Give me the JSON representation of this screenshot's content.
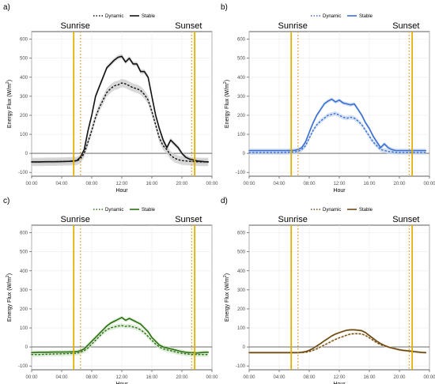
{
  "chart_data": [
    {
      "panel_label": "a)",
      "type": "line",
      "line_color": "#111111",
      "band_color": "#c8c8c8",
      "xlabel": "Hour",
      "ylabel": "Energy Flux (W/m²)",
      "ylabel_main": "Energy Flux (W/m",
      "ylabel_sup": "2",
      "ylabel_end": ")",
      "xlim": [
        0,
        24
      ],
      "ylim": [
        -120,
        640
      ],
      "xticks": [
        "00:00",
        "04:00",
        "08:00",
        "12:00",
        "16:00",
        "20:00",
        "00:00"
      ],
      "yticks": [
        "-100",
        "0",
        "100",
        "200",
        "300",
        "400",
        "500",
        "600"
      ],
      "legend": {
        "dynamic": "Dynamic",
        "stable": "Stable",
        "placement": "top"
      },
      "sunrise_label": "Sunrise",
      "sunset_label": "Sunset",
      "sunrise_lines": [
        5.6,
        6.5
      ],
      "sunset_lines": [
        21.3,
        21.7
      ],
      "x": [
        0,
        1,
        2,
        3,
        4,
        5,
        6,
        6.5,
        7,
        7.5,
        8,
        8.5,
        9,
        9.5,
        10,
        10.5,
        11,
        11.5,
        12,
        12.5,
        13,
        13.5,
        14,
        14.5,
        15,
        15.5,
        16,
        16.5,
        17,
        17.5,
        18,
        18.5,
        19,
        19.5,
        20,
        20.5,
        21,
        21.5,
        22,
        22.5,
        23,
        23.5
      ],
      "series": [
        {
          "name": "Stable",
          "dash": "solid",
          "band": 12,
          "values": [
            -45,
            -45,
            -44,
            -44,
            -43,
            -42,
            -38,
            -20,
            20,
            120,
            200,
            300,
            350,
            400,
            450,
            470,
            490,
            505,
            510,
            480,
            500,
            470,
            470,
            430,
            430,
            400,
            300,
            200,
            130,
            70,
            30,
            70,
            50,
            30,
            0,
            -20,
            -30,
            -35,
            -40,
            -42,
            -44,
            -45
          ]
        },
        {
          "name": "Dynamic",
          "dash": "dotted",
          "band": 22,
          "values": [
            -45,
            -45,
            -44,
            -44,
            -43,
            -42,
            -40,
            -30,
            0,
            60,
            120,
            190,
            240,
            280,
            320,
            340,
            355,
            360,
            370,
            365,
            355,
            345,
            340,
            330,
            310,
            280,
            220,
            150,
            80,
            40,
            20,
            -10,
            -25,
            -33,
            -38,
            -40,
            -42,
            -43,
            -44,
            -45,
            -45,
            -45
          ]
        }
      ]
    },
    {
      "panel_label": "b)",
      "type": "line",
      "line_color": "#3a6fd0",
      "band_color": "#c5d5f0",
      "xlabel": "Hour",
      "ylabel": "Energy Flux (W/m²)",
      "ylabel_main": "Energy Flux (W/m",
      "ylabel_sup": "2",
      "ylabel_end": ")",
      "xlim": [
        0,
        24
      ],
      "ylim": [
        -120,
        640
      ],
      "xticks": [
        "00:00",
        "04:00",
        "08:00",
        "12:00",
        "16:00",
        "20:00",
        "00:00"
      ],
      "yticks": [
        "-100",
        "0",
        "100",
        "200",
        "300",
        "400",
        "500",
        "600"
      ],
      "legend": {
        "dynamic": "Dynamic",
        "stable": "Stable",
        "placement": "top"
      },
      "sunrise_label": "Sunrise",
      "sunset_label": "Sunset",
      "sunrise_lines": [
        5.6,
        6.5
      ],
      "sunset_lines": [
        21.3,
        21.7
      ],
      "x": [
        0,
        1,
        2,
        3,
        4,
        5,
        6,
        6.5,
        7,
        7.5,
        8,
        8.5,
        9,
        9.5,
        10,
        10.5,
        11,
        11.5,
        12,
        12.5,
        13,
        13.5,
        14,
        14.5,
        15,
        15.5,
        16,
        16.5,
        17,
        17.5,
        18,
        18.5,
        19,
        19.5,
        20,
        20.5,
        21,
        21.5,
        22,
        22.5,
        23,
        23.5
      ],
      "series": [
        {
          "name": "Stable",
          "dash": "solid",
          "band": 10,
          "values": [
            15,
            15,
            15,
            15,
            15,
            15,
            16,
            20,
            30,
            60,
            110,
            160,
            200,
            230,
            260,
            275,
            285,
            270,
            280,
            265,
            260,
            255,
            260,
            230,
            200,
            160,
            130,
            90,
            60,
            30,
            50,
            30,
            20,
            15,
            15,
            15,
            15,
            15,
            15,
            15,
            15,
            15
          ]
        },
        {
          "name": "Dynamic",
          "dash": "dotted",
          "band": 12,
          "values": [
            5,
            5,
            5,
            5,
            5,
            6,
            7,
            10,
            20,
            40,
            80,
            120,
            150,
            170,
            185,
            200,
            205,
            210,
            200,
            190,
            185,
            190,
            185,
            170,
            150,
            120,
            90,
            60,
            40,
            20,
            15,
            10,
            8,
            6,
            5,
            5,
            5,
            5,
            5,
            5,
            5,
            5
          ]
        }
      ]
    },
    {
      "panel_label": "c)",
      "type": "line",
      "line_color": "#2d6e14",
      "band_color": "#cfe6c8",
      "xlabel": "Hour",
      "ylabel": "Energy Flux (W/m²)",
      "ylabel_main": "Energy Flux (W/m",
      "ylabel_sup": "2",
      "ylabel_end": ")",
      "xlim": [
        0,
        24
      ],
      "ylim": [
        -120,
        640
      ],
      "xticks": [
        "00:00",
        "04:00",
        "08:00",
        "12:00",
        "16:00",
        "20:00",
        "00:00"
      ],
      "yticks": [
        "-100",
        "0",
        "100",
        "200",
        "300",
        "400",
        "500",
        "600"
      ],
      "legend": {
        "dynamic": "Dynamic",
        "stable": "Stable",
        "placement": "top"
      },
      "sunrise_label": "Sunrise",
      "sunset_label": "Sunset",
      "sunrise_lines": [
        5.6,
        6.5
      ],
      "sunset_lines": [
        21.3,
        21.7
      ],
      "x": [
        0,
        1,
        2,
        3,
        4,
        5,
        6,
        6.5,
        7,
        7.5,
        8,
        8.5,
        9,
        9.5,
        10,
        10.5,
        11,
        11.5,
        12,
        12.5,
        13,
        13.5,
        14,
        14.5,
        15,
        15.5,
        16,
        16.5,
        17,
        17.5,
        18,
        18.5,
        19,
        19.5,
        20,
        20.5,
        21,
        21.5,
        22,
        22.5,
        23,
        23.5
      ],
      "series": [
        {
          "name": "Stable",
          "dash": "solid",
          "band": 10,
          "values": [
            -30,
            -28,
            -28,
            -27,
            -27,
            -26,
            -25,
            -20,
            -10,
            10,
            30,
            50,
            70,
            90,
            110,
            125,
            135,
            145,
            155,
            140,
            150,
            140,
            130,
            120,
            100,
            80,
            50,
            30,
            10,
            0,
            -5,
            -10,
            -15,
            -20,
            -25,
            -28,
            -30,
            -30,
            -32,
            -30,
            -28,
            -28
          ]
        },
        {
          "name": "Dynamic",
          "dash": "dotted",
          "band": 12,
          "values": [
            -40,
            -40,
            -38,
            -37,
            -36,
            -35,
            -33,
            -28,
            -20,
            -5,
            15,
            35,
            55,
            75,
            90,
            100,
            105,
            110,
            112,
            108,
            110,
            105,
            100,
            90,
            75,
            55,
            35,
            15,
            0,
            -10,
            -15,
            -20,
            -25,
            -30,
            -33,
            -36,
            -38,
            -40,
            -40,
            -40,
            -40,
            -40
          ]
        }
      ]
    },
    {
      "panel_label": "d)",
      "type": "line",
      "line_color": "#6b4a12",
      "band_color": "#e6dac4",
      "xlabel": "Hour",
      "ylabel": "Energy Flux (W/m²)",
      "ylabel_main": "Energy Flux (W/m",
      "ylabel_sup": "2",
      "ylabel_end": ")",
      "xlim": [
        0,
        24
      ],
      "ylim": [
        -120,
        640
      ],
      "xticks": [
        "00:00",
        "04:00",
        "08:00",
        "12:00",
        "16:00",
        "20:00",
        "00:00"
      ],
      "yticks": [
        "-100",
        "0",
        "100",
        "200",
        "300",
        "400",
        "500",
        "600"
      ],
      "legend": {
        "dynamic": "Dynamic",
        "stable": "Stable",
        "placement": "top"
      },
      "sunrise_label": "Sunrise",
      "sunset_label": "Sunset",
      "sunrise_lines": [
        5.6,
        6.5
      ],
      "sunset_lines": [
        21.3,
        21.7
      ],
      "x": [
        0,
        1,
        2,
        3,
        4,
        5,
        6,
        6.5,
        7,
        7.5,
        8,
        8.5,
        9,
        9.5,
        10,
        10.5,
        11,
        11.5,
        12,
        12.5,
        13,
        13.5,
        14,
        14.5,
        15,
        15.5,
        16,
        16.5,
        17,
        17.5,
        18,
        18.5,
        19,
        19.5,
        20,
        20.5,
        21,
        21.5,
        22,
        22.5,
        23,
        23.5
      ],
      "series": [
        {
          "name": "Stable",
          "dash": "solid",
          "band": 6,
          "values": [
            -30,
            -30,
            -30,
            -30,
            -30,
            -30,
            -30,
            -30,
            -28,
            -25,
            -18,
            -8,
            5,
            18,
            32,
            45,
            58,
            68,
            75,
            82,
            88,
            90,
            90,
            88,
            85,
            75,
            60,
            45,
            30,
            18,
            8,
            0,
            -5,
            -10,
            -15,
            -18,
            -20,
            -22,
            -25,
            -27,
            -29,
            -30
          ]
        },
        {
          "name": "Dynamic",
          "dash": "dotted",
          "band": 6,
          "values": [
            -30,
            -30,
            -30,
            -30,
            -30,
            -30,
            -30,
            -30,
            -30,
            -28,
            -24,
            -18,
            -10,
            0,
            10,
            20,
            30,
            40,
            48,
            55,
            62,
            68,
            70,
            70,
            68,
            60,
            48,
            35,
            22,
            12,
            5,
            0,
            -5,
            -10,
            -15,
            -18,
            -20,
            -22,
            -25,
            -27,
            -29,
            -30
          ]
        }
      ]
    }
  ]
}
